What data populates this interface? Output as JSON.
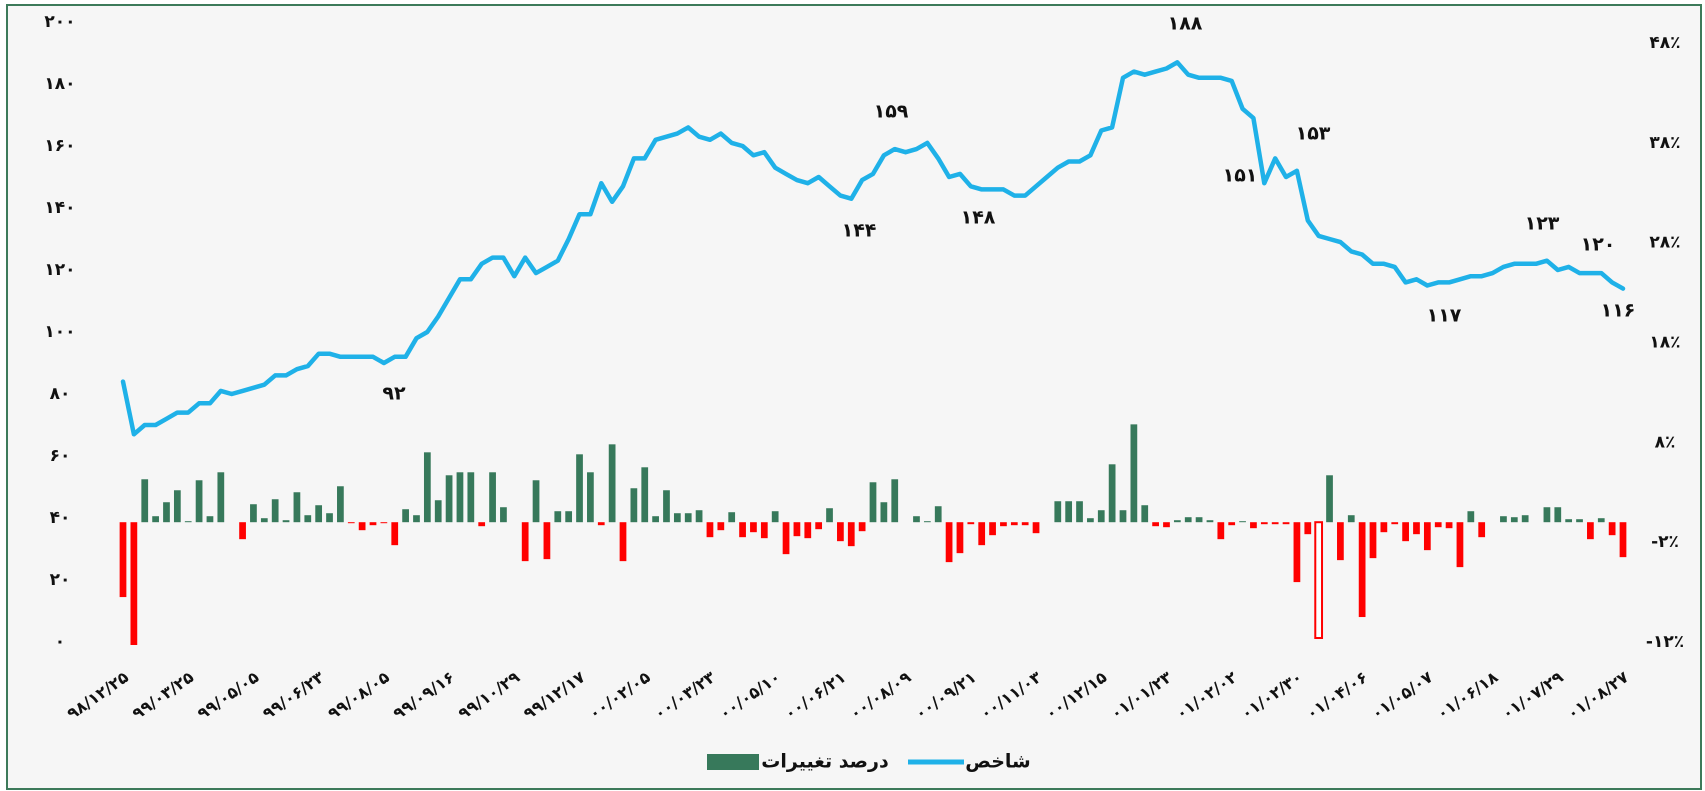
{
  "chart_data": {
    "type": "combo",
    "categories": [
      "۹۸/۱۲/۲۵",
      null,
      null,
      null,
      null,
      null,
      "۹۹/۰۳/۲۵",
      null,
      null,
      null,
      null,
      null,
      "۹۹/۰۵/۰۵",
      null,
      null,
      null,
      null,
      null,
      "۹۹/۰۶/۲۳",
      null,
      null,
      null,
      null,
      null,
      "۹۹/۰۸/۰۵",
      null,
      null,
      null,
      null,
      null,
      "۹۹/۰۹/۱۶",
      null,
      null,
      null,
      null,
      null,
      "۹۹/۱۰/۲۹",
      null,
      null,
      null,
      null,
      null,
      "۹۹/۱۲/۱۷",
      null,
      null,
      null,
      null,
      null,
      "۰۰/۰۲/۰۵",
      null,
      null,
      null,
      null,
      null,
      "۰۰/۰۳/۲۳",
      null,
      null,
      null,
      null,
      null,
      "۰۰/۰۵/۱۰",
      null,
      null,
      null,
      null,
      null,
      "۰۰/۰۶/۲۱",
      null,
      null,
      null,
      null,
      null,
      "۰۰/۰۸/۰۹",
      null,
      null,
      null,
      null,
      null,
      "۰۰/۰۹/۲۱",
      null,
      null,
      null,
      null,
      null,
      "۰۰/۱۱/۰۳",
      null,
      null,
      null,
      null,
      null,
      "۰۰/۱۲/۱۵",
      null,
      null,
      null,
      null,
      null,
      "۰۱/۰۱/۲۳",
      null,
      null,
      null,
      null,
      null,
      "۰۱/۰۲/۰۲",
      null,
      null,
      null,
      null,
      null,
      "۰۱/۰۲/۳۰",
      null,
      null,
      null,
      null,
      null,
      "۰۱/۰۴/۰۶",
      null,
      null,
      null,
      null,
      null,
      "۰۱/۰۵/۰۷",
      null,
      null,
      null,
      null,
      null,
      "۰۱/۰۶/۱۸",
      null,
      null,
      null,
      null,
      null,
      "۰۱/۰۷/۲۹",
      null,
      null,
      null,
      null,
      null,
      "۰۱/۰۸/۲۷"
    ],
    "series": [
      {
        "name": "شاخص",
        "type": "line",
        "color": "#1fb1e8",
        "axis": "y",
        "values": [
          84,
          67,
          70,
          70,
          72,
          74,
          74,
          77,
          77,
          81,
          80,
          81,
          82,
          83,
          86,
          86,
          88,
          89,
          93,
          93,
          92,
          92,
          92,
          92,
          90,
          92,
          92,
          98,
          100,
          105,
          111,
          117,
          117,
          122,
          124,
          124,
          118,
          124,
          119,
          121,
          123,
          130,
          138,
          138,
          148,
          142,
          147,
          156,
          156,
          162,
          163,
          164,
          166,
          163,
          162,
          164,
          161,
          160,
          157,
          158,
          153,
          151,
          149,
          148,
          150,
          147,
          144,
          143,
          149,
          151,
          157,
          159,
          158,
          159,
          161,
          156,
          150,
          151,
          147,
          146,
          146,
          146,
          144,
          144,
          147,
          150,
          153,
          155,
          155,
          157,
          165,
          166,
          182,
          184,
          183,
          184,
          185,
          187,
          183,
          182,
          182,
          182,
          181,
          172,
          169,
          148,
          156,
          150,
          152,
          136,
          131,
          130,
          129,
          126,
          125,
          122,
          122,
          121,
          116,
          117,
          115,
          116,
          116,
          117,
          118,
          118,
          119,
          121,
          122,
          122,
          122,
          123,
          120,
          121,
          119,
          119,
          119,
          116,
          114
        ]
      },
      {
        "name": "درصد تغییرات",
        "type": "bar",
        "color": "#37795b",
        "negative_color": "#ff0000",
        "axis": "y2",
        "hollow_bars": [
          110
        ],
        "values": [
          -7.5,
          -12.3,
          4.3,
          0.6,
          2,
          3.2,
          0.1,
          4.2,
          0.6,
          5,
          0,
          -1.7,
          1.8,
          0.4,
          2.3,
          0.2,
          3,
          0.7,
          1.7,
          0.9,
          3.6,
          -0.1,
          -0.8,
          -0.3,
          -0.1,
          -2.3,
          1.3,
          0.7,
          7,
          2.2,
          4.7,
          5,
          5,
          -0.4,
          5,
          1.5,
          0,
          -3.9,
          4.2,
          -3.7,
          1.1,
          1.1,
          6.8,
          5,
          -0.3,
          7.8,
          -3.9,
          3.4,
          5.5,
          0.6,
          3.2,
          0.9,
          0.9,
          1.2,
          -1.5,
          -0.8,
          1,
          -1.5,
          -1,
          -1.6,
          1.1,
          -3.2,
          -1.4,
          -1.6,
          -0.7,
          1.4,
          -1.9,
          -2.4,
          -0.9,
          4,
          2,
          4.3,
          0,
          0.6,
          0.1,
          1.6,
          -4,
          -3.1,
          -0.2,
          -2.3,
          -1.3,
          -0.4,
          -0.3,
          -0.3,
          -1.1,
          0,
          2.1,
          2.1,
          2.1,
          0.4,
          1.2,
          5.8,
          1.2,
          9.8,
          1.7,
          -0.4,
          -0.5,
          0.2,
          0.5,
          0.5,
          0.2,
          -1.7,
          -0.3,
          0.1,
          -0.6,
          -0.2,
          -0.2,
          -0.2,
          -6,
          -1.2,
          -11.6,
          4.7,
          -3.8,
          0.7,
          -9.5,
          -3.6,
          -1,
          -0.2,
          -1.9,
          -1.2,
          -2.8,
          -0.5,
          -0.6,
          -4.5,
          1.1,
          -1.5,
          0,
          0.6,
          0.5,
          0.7,
          0,
          1.5,
          1.5,
          0.3,
          0.3,
          -1.7,
          0.4,
          -1.3,
          -3.5
        ]
      }
    ],
    "ylim": [
      0,
      200
    ],
    "yticks": [
      {
        "value": 0,
        "label": "۰"
      },
      {
        "value": 20,
        "label": "۲۰"
      },
      {
        "value": 40,
        "label": "۴۰"
      },
      {
        "value": 60,
        "label": "۶۰"
      },
      {
        "value": 80,
        "label": "۸۰"
      },
      {
        "value": 100,
        "label": "۱۰۰"
      },
      {
        "value": 120,
        "label": "۱۲۰"
      },
      {
        "value": 140,
        "label": "۱۴۰"
      },
      {
        "value": 160,
        "label": "۱۶۰"
      },
      {
        "value": 180,
        "label": "۱۸۰"
      },
      {
        "value": 200,
        "label": "۲۰۰"
      }
    ],
    "y2lim": [
      -12,
      48
    ],
    "y2ticks": [
      {
        "value": -12,
        "label": "-۱۲٪"
      },
      {
        "value": -2,
        "label": "-۲٪"
      },
      {
        "value": 8,
        "label": "۸٪"
      },
      {
        "value": 18,
        "label": "۱۸٪"
      },
      {
        "value": 28,
        "label": "۲۸٪"
      },
      {
        "value": 38,
        "label": "۳۸٪"
      },
      {
        "value": 48,
        "label": "۴۸٪"
      }
    ],
    "annotations": [
      "۹۲",
      "۱۴۴",
      "۱۴۸",
      "۱۵۹",
      "۱۸۸",
      "۱۵۱",
      "۱۵۳",
      "۱۱۷",
      "۱۲۳",
      "۱۲۰",
      "۱۱۶"
    ],
    "legend": "bottom"
  }
}
